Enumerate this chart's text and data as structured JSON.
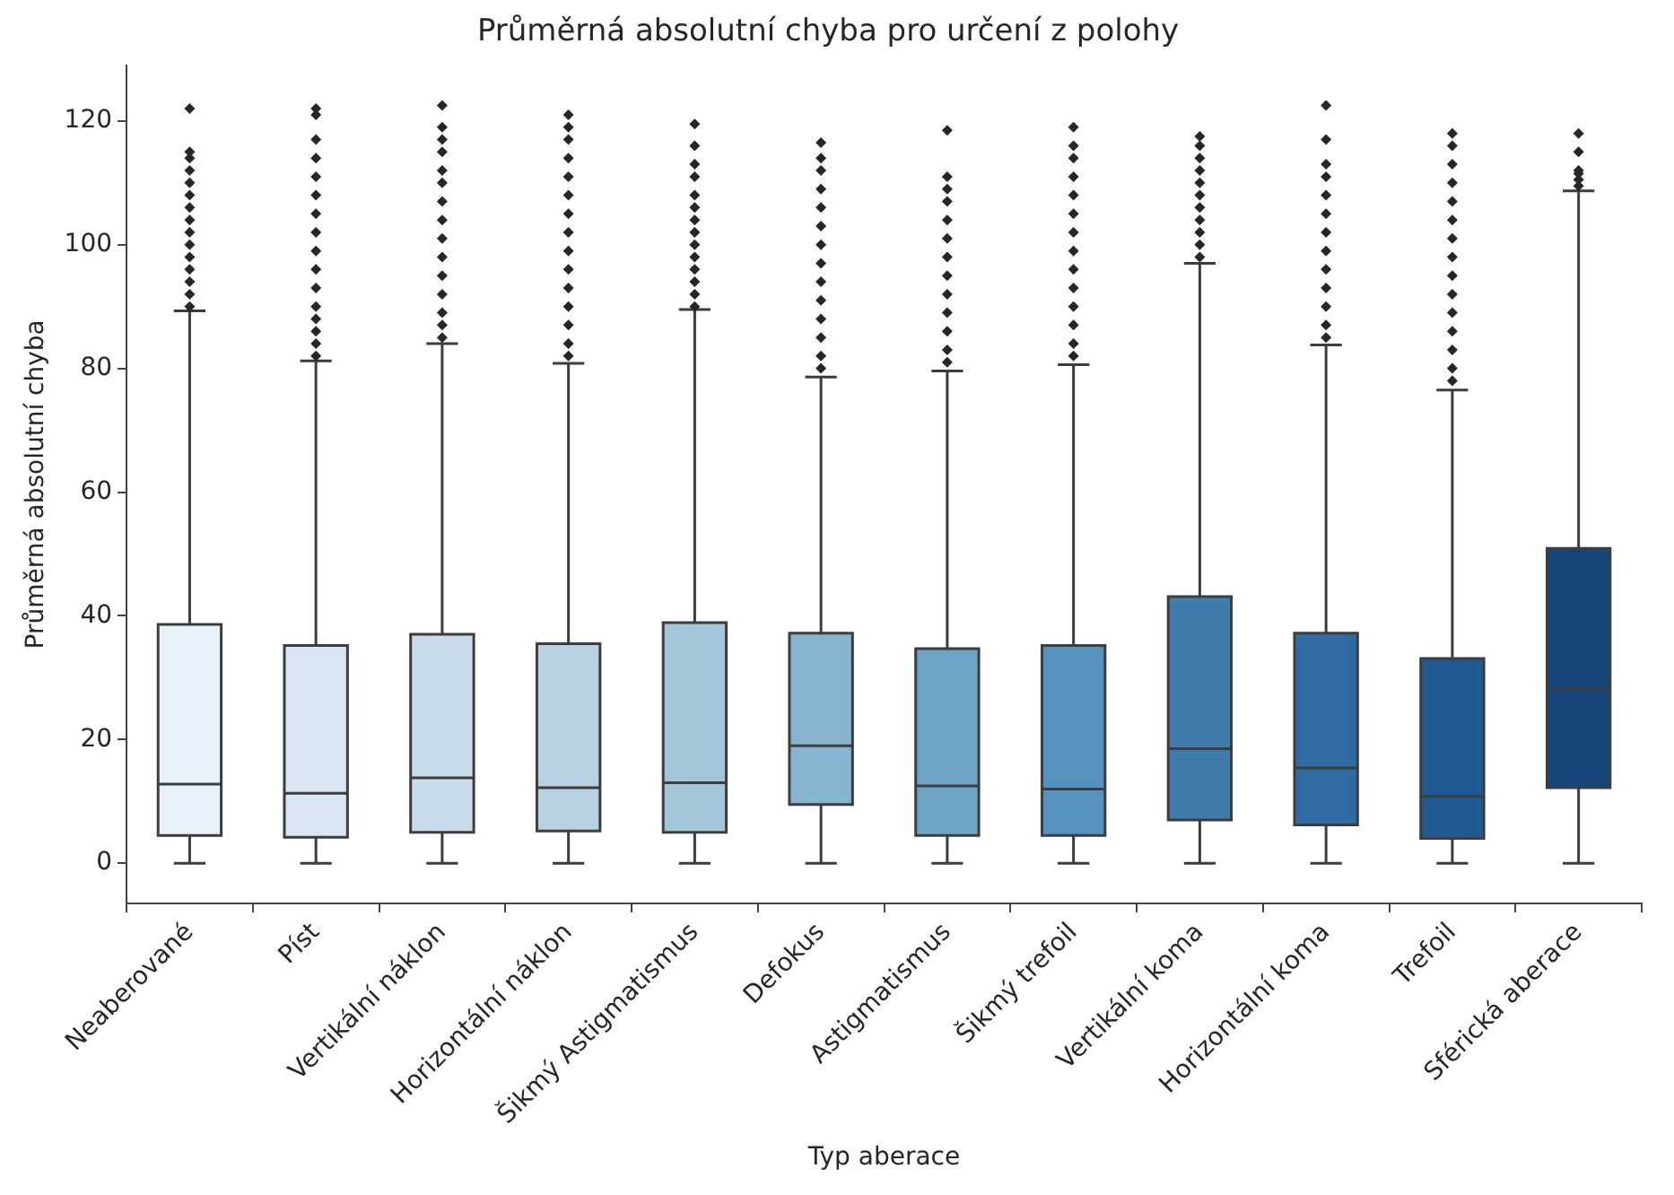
{
  "chart_data": {
    "type": "box",
    "title": "Průměrná absolutní chyba pro určení z polohy",
    "xlabel": "Typ aberace",
    "ylabel": "Průměrná absolutní chyba",
    "categories": [
      "Neaberované",
      "Píst",
      "Vertikální náklon",
      "Horizontální náklon",
      "Šikmý Astigmatismus",
      "Defokus",
      "Astigmatismus",
      "Šikmý trefoil",
      "Vertikální koma",
      "Horizontální koma",
      "Trefoil",
      "Sférická aberace"
    ],
    "colors": [
      "#e8f0f9",
      "#dae6f2",
      "#cadcec",
      "#b9d2e2",
      "#a3c5d8",
      "#86b5d0",
      "#6ea5c7",
      "#5592bd",
      "#3f7cab",
      "#2f6ca3",
      "#215a93",
      "#17457a"
    ],
    "boxes": [
      {
        "low": 0,
        "q1": 4.5,
        "median": 12.8,
        "q3": 38.6,
        "high": 89.3,
        "outliers": [
          90,
          92,
          94,
          96,
          98,
          100,
          102,
          104,
          106,
          108,
          110,
          112,
          114,
          115,
          122
        ]
      },
      {
        "low": 0,
        "q1": 4.2,
        "median": 11.3,
        "q3": 35.2,
        "high": 81.2,
        "outliers": [
          82,
          84,
          86,
          88,
          90,
          93,
          96,
          99,
          102,
          105,
          108,
          111,
          114,
          117,
          121,
          122
        ]
      },
      {
        "low": 0,
        "q1": 5,
        "median": 13.8,
        "q3": 37,
        "high": 84,
        "outliers": [
          85,
          87,
          89,
          92,
          95,
          98,
          101,
          104,
          107,
          110,
          112,
          115,
          117,
          119,
          122.5
        ]
      },
      {
        "low": 0,
        "q1": 5.2,
        "median": 12.2,
        "q3": 35.5,
        "high": 80.8,
        "outliers": [
          82,
          84,
          87,
          90,
          93,
          96,
          99,
          102,
          105,
          108,
          111,
          114,
          117,
          119,
          121
        ]
      },
      {
        "low": 0,
        "q1": 5,
        "median": 13,
        "q3": 38.9,
        "high": 89.5,
        "outliers": [
          90,
          92,
          94,
          96,
          98,
          100,
          102,
          104,
          106,
          108,
          111,
          113,
          116,
          119.5
        ]
      },
      {
        "low": 0,
        "q1": 9.5,
        "median": 19,
        "q3": 37.2,
        "high": 78.6,
        "outliers": [
          80,
          82,
          85,
          88,
          91,
          94,
          97,
          100,
          103,
          106,
          109,
          112,
          114,
          116.5
        ]
      },
      {
        "low": 0,
        "q1": 4.5,
        "median": 12.5,
        "q3": 34.7,
        "high": 79.6,
        "outliers": [
          81,
          83,
          86,
          89,
          92,
          95,
          98,
          101,
          104,
          107,
          109,
          111,
          118.5
        ]
      },
      {
        "low": 0,
        "q1": 4.5,
        "median": 12,
        "q3": 35.2,
        "high": 80.6,
        "outliers": [
          82,
          84,
          87,
          90,
          93,
          96,
          99,
          102,
          105,
          108,
          111,
          114,
          116,
          119
        ]
      },
      {
        "low": 0,
        "q1": 7,
        "median": 18.5,
        "q3": 43.1,
        "high": 97,
        "outliers": [
          98,
          100,
          102,
          104,
          106,
          108,
          110,
          112,
          114,
          116,
          117.5
        ]
      },
      {
        "low": 0,
        "q1": 6.2,
        "median": 15.4,
        "q3": 37.2,
        "high": 83.8,
        "outliers": [
          85,
          87,
          90,
          93,
          96,
          99,
          102,
          105,
          108,
          111,
          113,
          117,
          122.5
        ]
      },
      {
        "low": 0,
        "q1": 4,
        "median": 10.8,
        "q3": 33.1,
        "high": 76.5,
        "outliers": [
          78,
          80,
          83,
          86,
          89,
          92,
          95,
          98,
          101,
          104,
          107,
          110,
          113,
          116,
          118
        ]
      },
      {
        "low": 0,
        "q1": 12.2,
        "median": 28.3,
        "q3": 50.9,
        "high": 108.7,
        "outliers": [
          109.5,
          110.5,
          111.5,
          112,
          115,
          118
        ]
      }
    ],
    "ylim": [
      -6.5,
      129
    ],
    "yticks": [
      0,
      20,
      40,
      60,
      80,
      100,
      120
    ],
    "grid": false,
    "legend": false,
    "marker": "diamond"
  }
}
